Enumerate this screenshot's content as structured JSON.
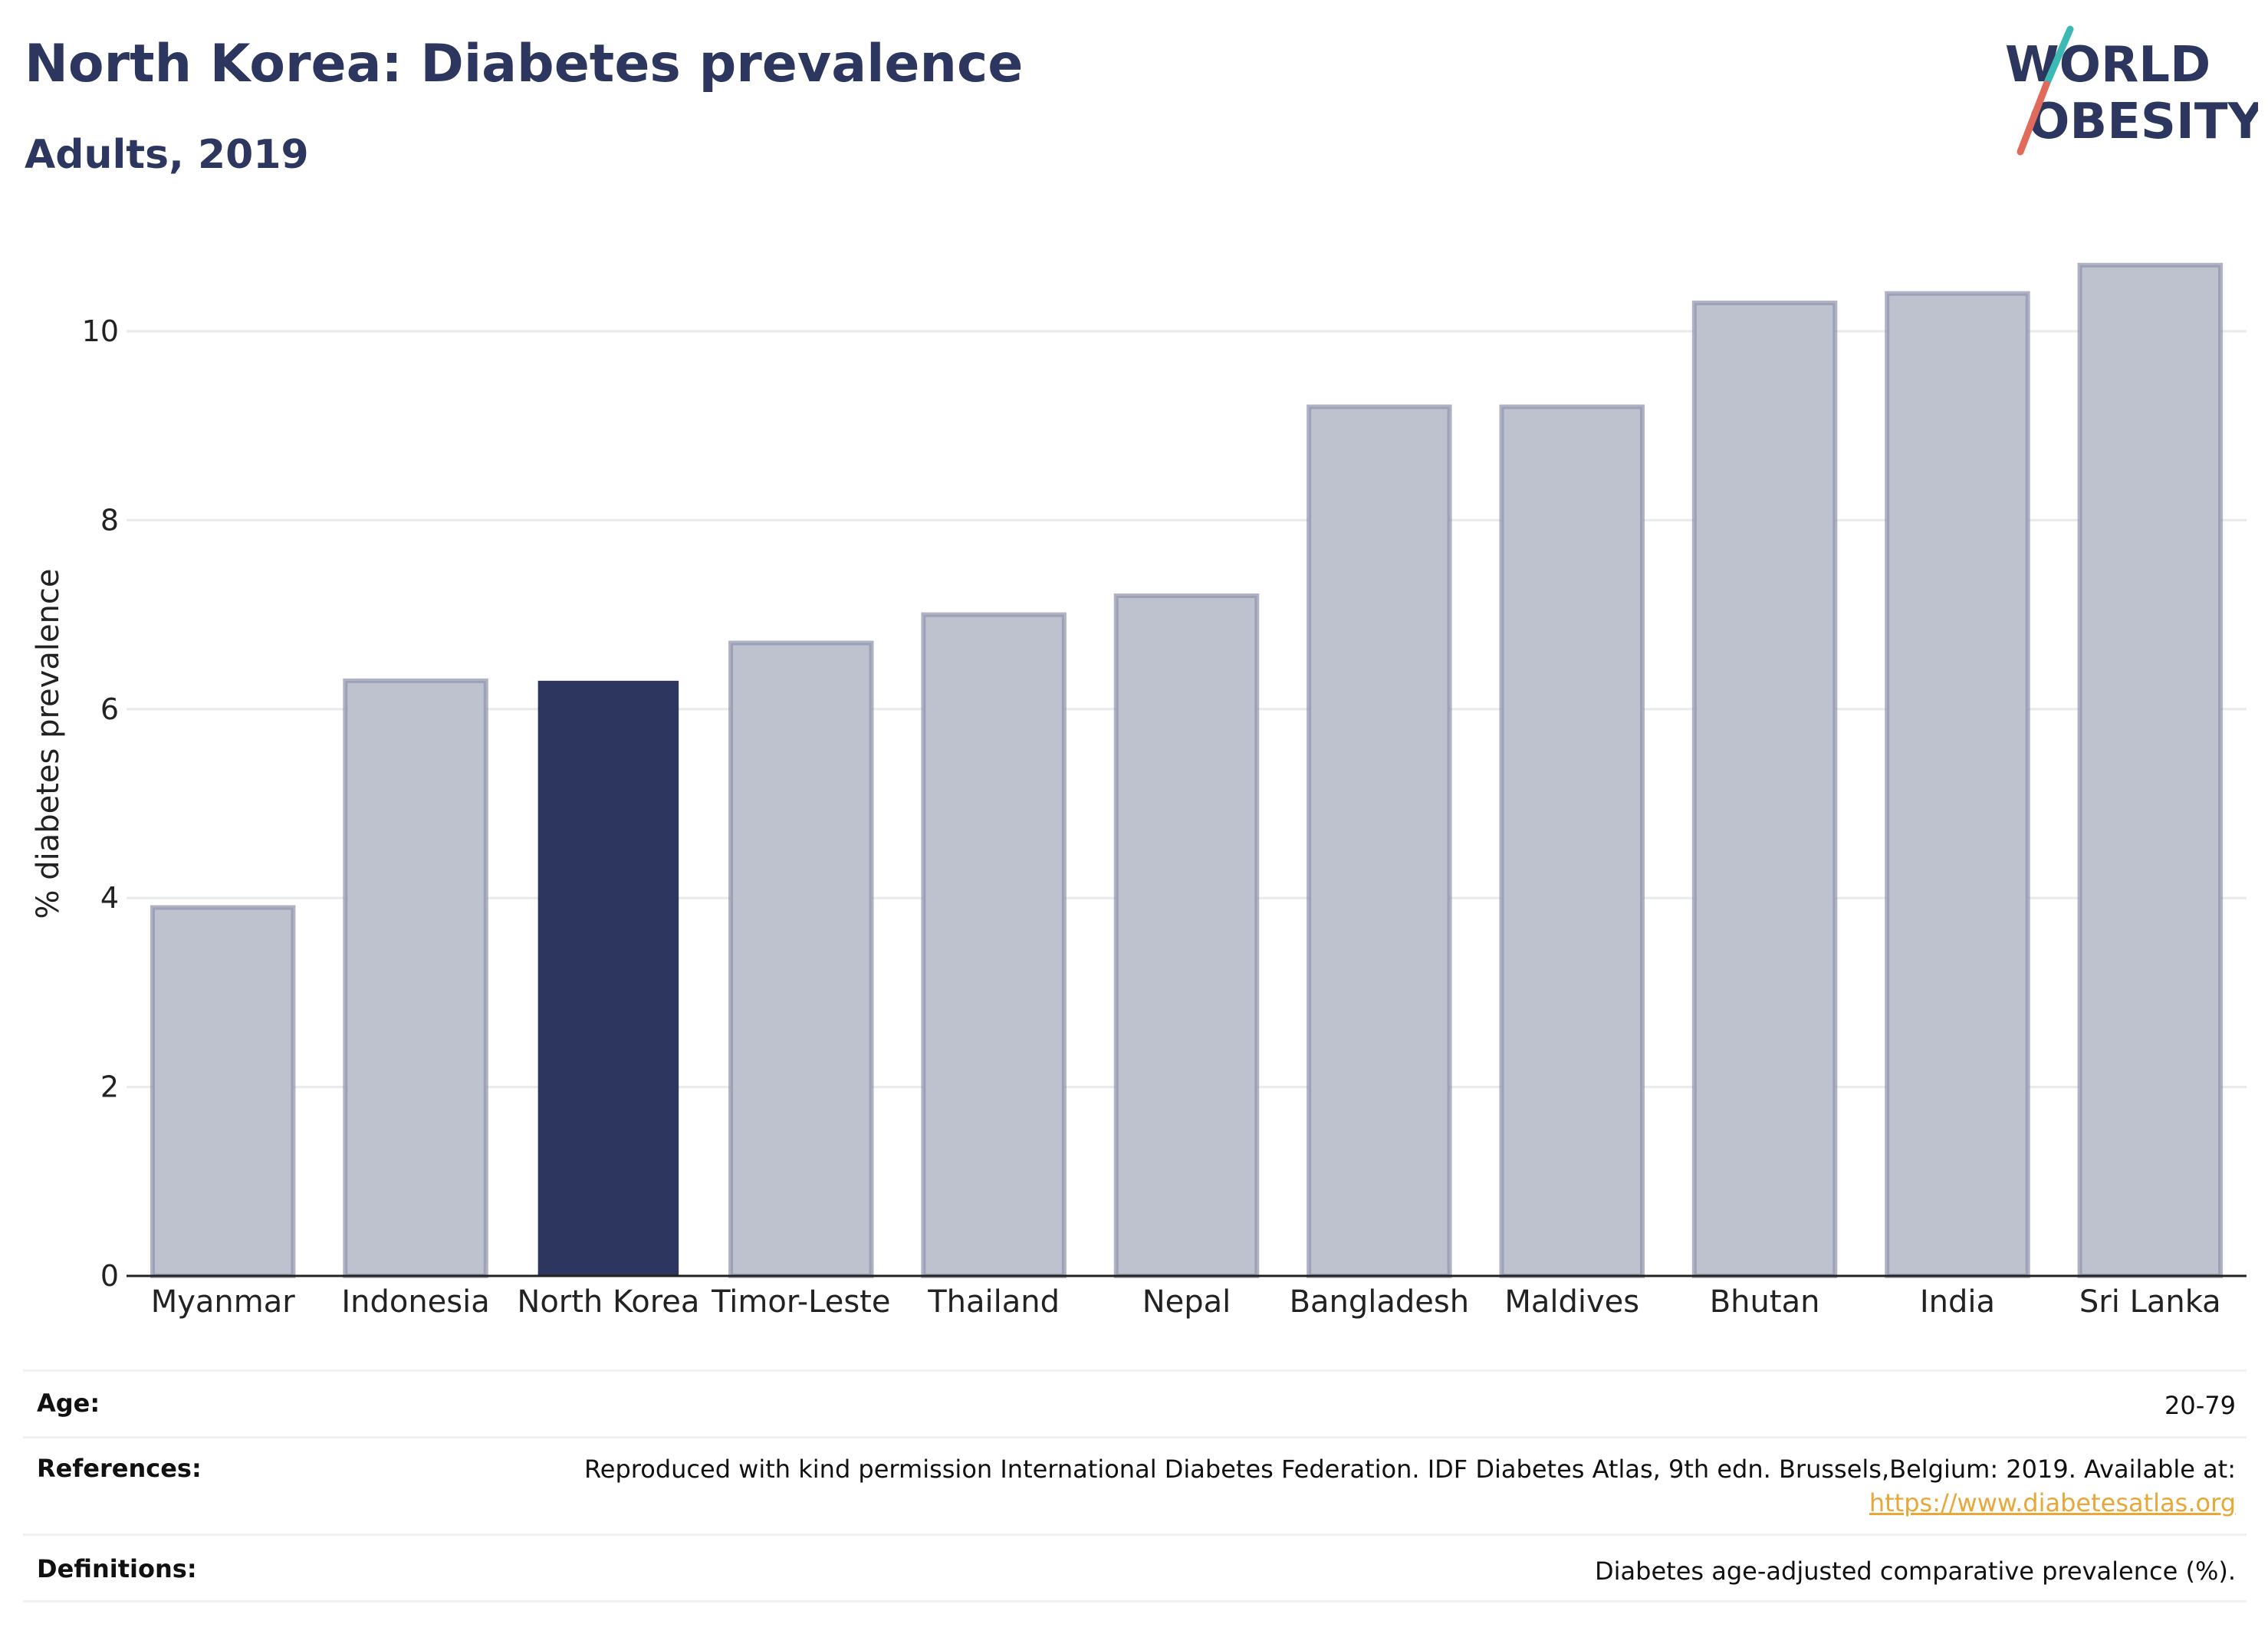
{
  "title": "North Korea: Diabetes prevalence",
  "subtitle": "Adults, 2019",
  "logo": {
    "line1": "WORLD",
    "line2": "OBESITY",
    "brand_color": "#2c365e",
    "accent_teal": "#3bb9b4",
    "accent_red": "#e06b5a"
  },
  "colors": {
    "highlight": "#2c365e",
    "bar": "#bec2cf",
    "bar_border": "#8e93ab",
    "grid": "#e8ebeb",
    "axis": "#222222"
  },
  "chart_data": {
    "type": "bar",
    "categories": [
      "Myanmar",
      "Indonesia",
      "North Korea",
      "Timor-Leste",
      "Thailand",
      "Nepal",
      "Bangladesh",
      "Maldives",
      "Bhutan",
      "India",
      "Sri Lanka"
    ],
    "values": [
      3.9,
      6.3,
      6.3,
      6.7,
      7.0,
      7.2,
      9.2,
      9.2,
      10.3,
      10.4,
      10.7
    ],
    "highlight": "North Korea",
    "ylabel": "% diabetes prevalence",
    "yticks": [
      0,
      2,
      4,
      6,
      8,
      10
    ],
    "ylim": [
      0,
      11
    ],
    "grid": true
  },
  "footer": {
    "age_label": "Age:",
    "age_value": "20-79",
    "references_label": "References:",
    "references_text": "Reproduced with kind permission International Diabetes Federation. IDF Diabetes Atlas, 9th edn. Brussels,Belgium: 2019. Available at:",
    "references_link": "https://www.diabetesatlas.org",
    "definitions_label": "Definitions:",
    "definitions_value": "Diabetes age-adjusted comparative prevalence (%)."
  }
}
